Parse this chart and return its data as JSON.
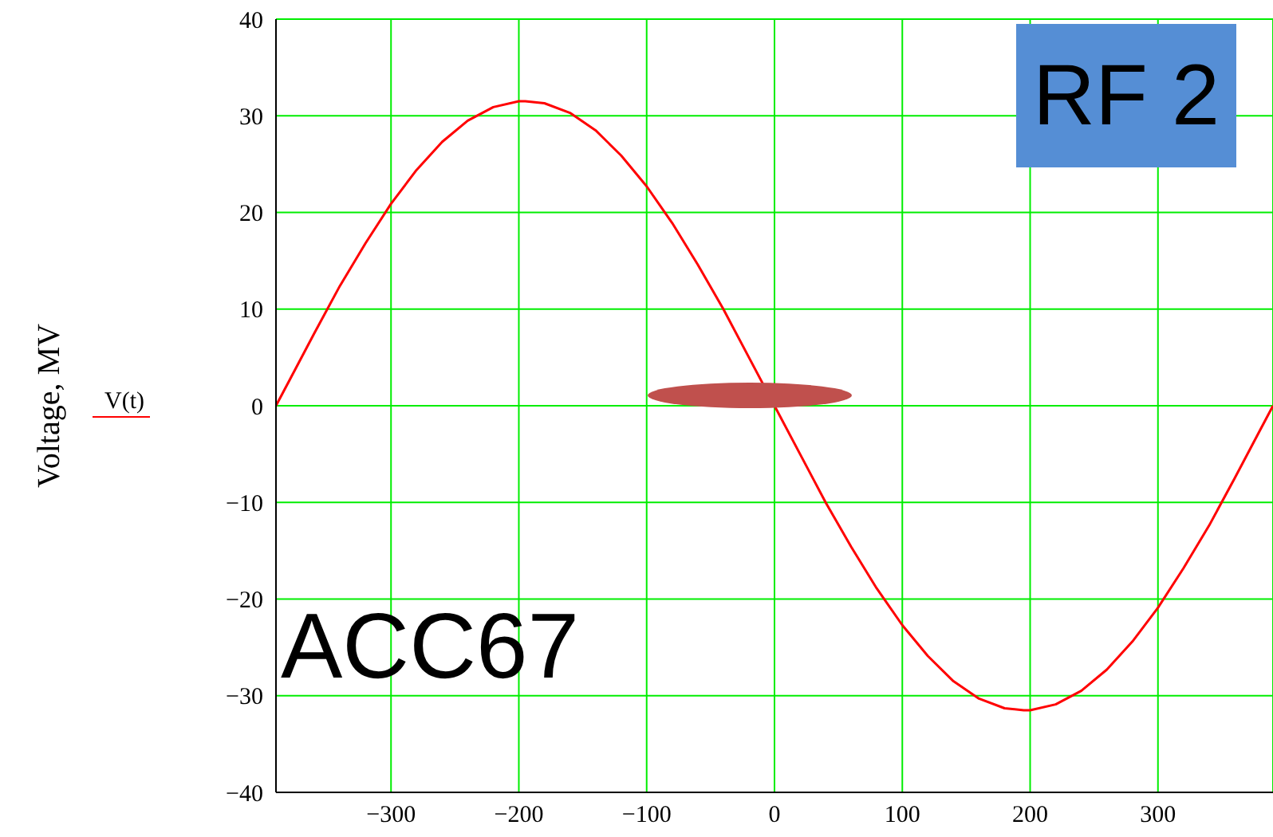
{
  "chart_data": {
    "type": "line",
    "ylabel": "Voltage, MV",
    "legend": "left",
    "grid": true,
    "marker": "none",
    "line_style": "solid",
    "xlim": [
      -390,
      390
    ],
    "xticks": [
      -300,
      -200,
      -100,
      0,
      100,
      200,
      300
    ],
    "ylim": [
      -40,
      40
    ],
    "yticks": [
      -40,
      -30,
      -20,
      -10,
      0,
      10,
      20,
      30,
      40
    ],
    "x": [
      -390,
      -380,
      -360,
      -340,
      -320,
      -300,
      -280,
      -260,
      -240,
      -220,
      -200,
      -195,
      -180,
      -160,
      -140,
      -120,
      -100,
      -80,
      -60,
      -40,
      -20,
      0,
      20,
      40,
      60,
      80,
      100,
      120,
      140,
      160,
      180,
      195,
      200,
      220,
      240,
      260,
      280,
      300,
      320,
      340,
      360,
      380,
      390
    ],
    "series": [
      {
        "name": "V(t)",
        "color": "#ff0000",
        "values": [
          0,
          2.5,
          7.5,
          12.4,
          16.8,
          20.9,
          24.4,
          27.3,
          29.5,
          30.9,
          31.5,
          31.5,
          31.3,
          30.3,
          28.5,
          25.9,
          22.7,
          18.9,
          14.6,
          10,
          5,
          0,
          -5,
          -10,
          -14.6,
          -18.9,
          -22.7,
          -25.9,
          -28.5,
          -30.3,
          -31.3,
          -31.5,
          -31.5,
          -30.9,
          -29.5,
          -27.3,
          -24.4,
          -20.9,
          -16.8,
          -12.4,
          -7.5,
          -2.5,
          0
        ]
      }
    ],
    "annotations": [
      "RF 2",
      "ACC67"
    ]
  }
}
